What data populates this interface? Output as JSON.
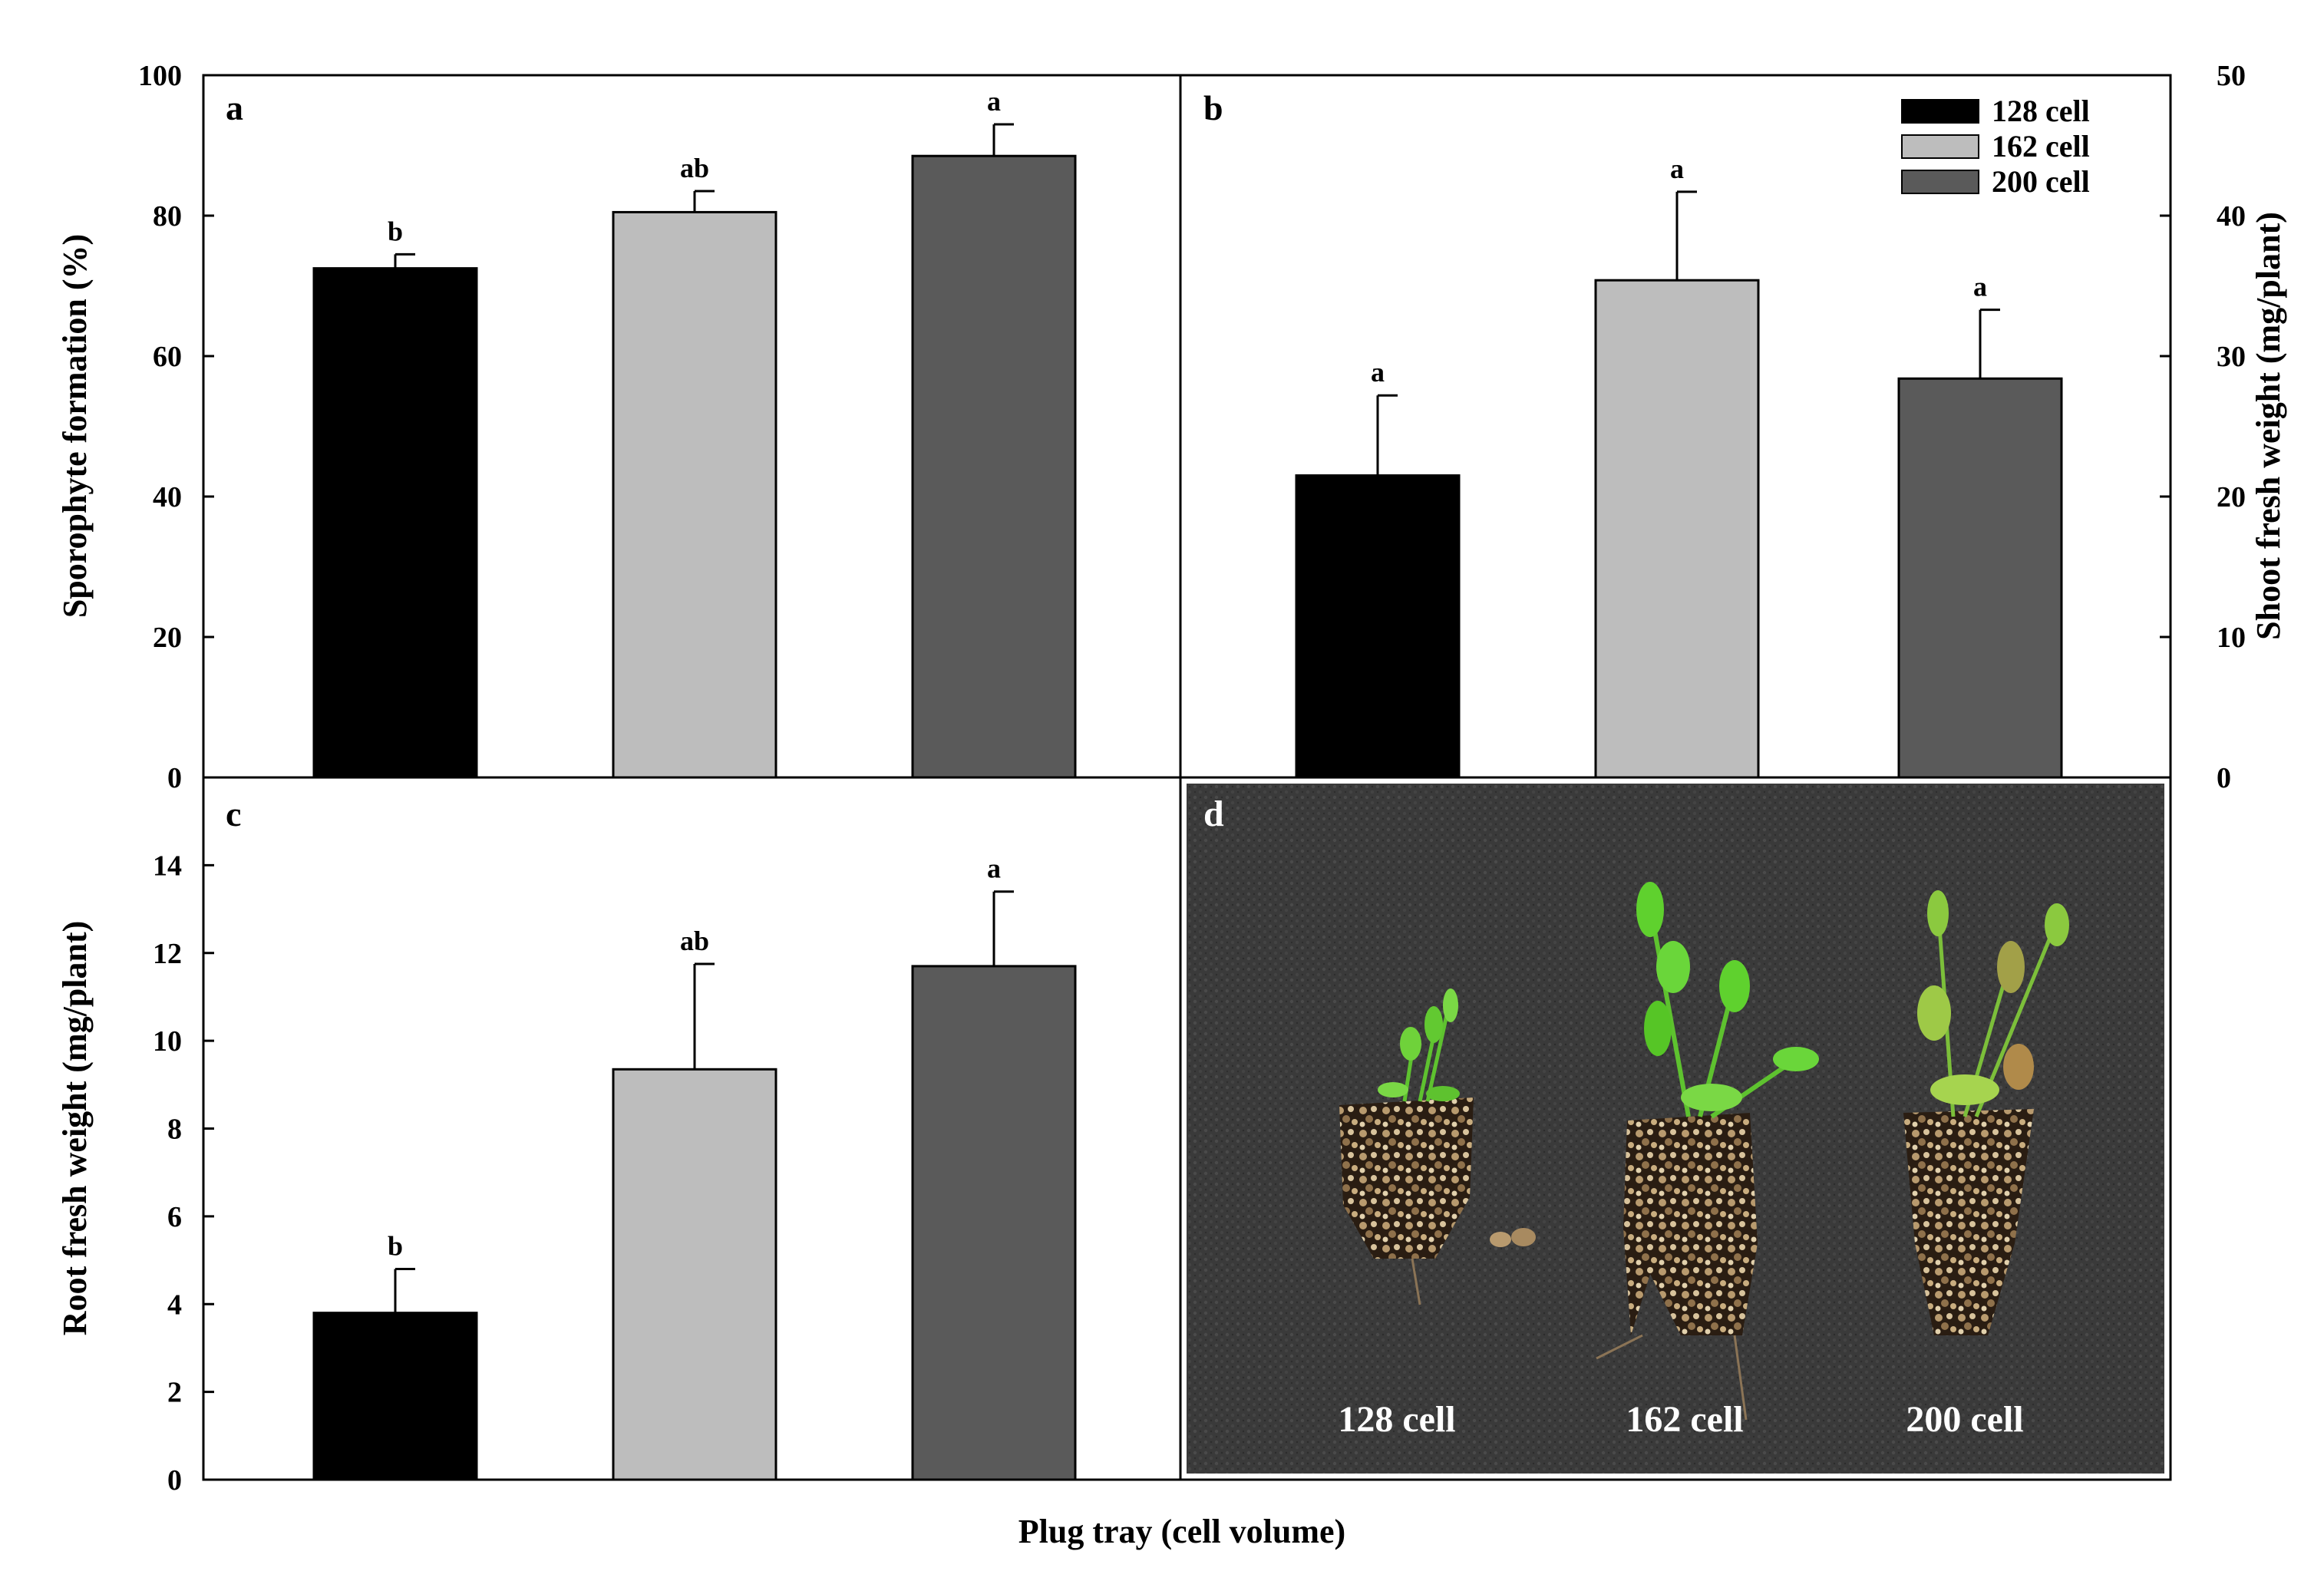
{
  "figure": {
    "xlabel": "Plug tray (cell volume)"
  },
  "chart_data": [
    {
      "type": "bar",
      "panel": "a",
      "categories": [
        "128 cell",
        "162 cell",
        "200 cell"
      ],
      "values": [
        72.5,
        80.5,
        88.5
      ],
      "errors": [
        2.0,
        3.0,
        4.5
      ],
      "significance": [
        "b",
        "ab",
        "a"
      ],
      "colors": [
        "#000000",
        "#bdbdbd",
        "#5a5a5a"
      ],
      "ylabel": "Sporophyte formation (%)",
      "ylim": [
        0,
        100
      ],
      "yticks": [
        0,
        20,
        40,
        60,
        80,
        100
      ],
      "axis_side": "left"
    },
    {
      "type": "bar",
      "panel": "b",
      "categories": [
        "128 cell",
        "162 cell",
        "200 cell"
      ],
      "values": [
        21.5,
        35.4,
        28.4
      ],
      "errors": [
        5.7,
        6.3,
        4.9
      ],
      "significance": [
        "a",
        "a",
        "a"
      ],
      "colors": [
        "#000000",
        "#bdbdbd",
        "#5a5a5a"
      ],
      "ylabel": "Shoot fresh weight (mg/plant)",
      "ylim": [
        0,
        50
      ],
      "yticks": [
        0,
        10,
        20,
        30,
        40,
        50
      ],
      "axis_side": "right",
      "legend": [
        "128 cell",
        "162 cell",
        "200 cell"
      ],
      "legend_position": "top-right"
    },
    {
      "type": "bar",
      "panel": "c",
      "categories": [
        "128 cell",
        "162 cell",
        "200 cell"
      ],
      "values": [
        3.8,
        9.35,
        11.7
      ],
      "errors": [
        1.0,
        2.4,
        1.7
      ],
      "significance": [
        "b",
        "ab",
        "a"
      ],
      "colors": [
        "#000000",
        "#bdbdbd",
        "#5a5a5a"
      ],
      "ylabel": "Root fresh weight (mg/plant)",
      "ylim": [
        0,
        16
      ],
      "yticks": [
        0,
        2,
        4,
        6,
        8,
        10,
        12,
        14
      ],
      "axis_side": "left"
    }
  ],
  "photo": {
    "panel": "d",
    "labels": [
      "128 cell",
      "162 cell",
      "200 cell"
    ]
  }
}
